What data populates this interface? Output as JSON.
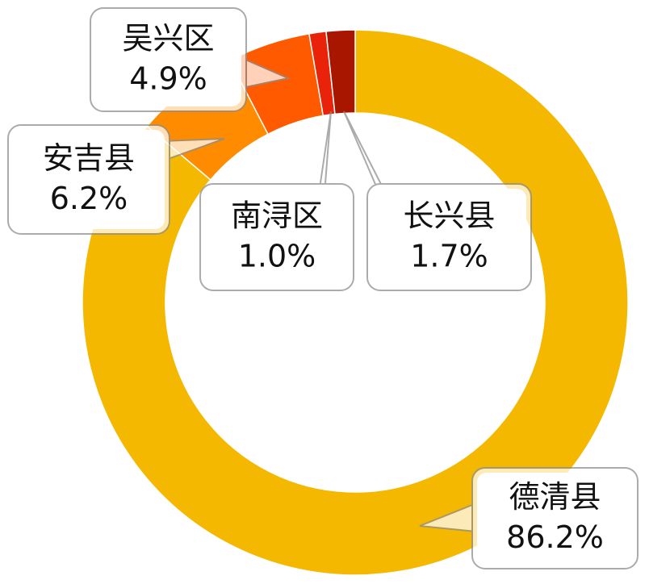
{
  "chart_data": {
    "type": "donut",
    "categories": [
      "德清县",
      "安吉县",
      "吴兴区",
      "南浔区",
      "长兴县"
    ],
    "values": [
      86.2,
      6.2,
      4.9,
      1.0,
      1.7
    ],
    "value_labels": [
      "86.2%",
      "6.2%",
      "4.9%",
      "1.0%",
      "1.7%"
    ],
    "colors": [
      "#f5b800",
      "#ff8c00",
      "#ff5a00",
      "#e8230a",
      "#a81600"
    ]
  }
}
